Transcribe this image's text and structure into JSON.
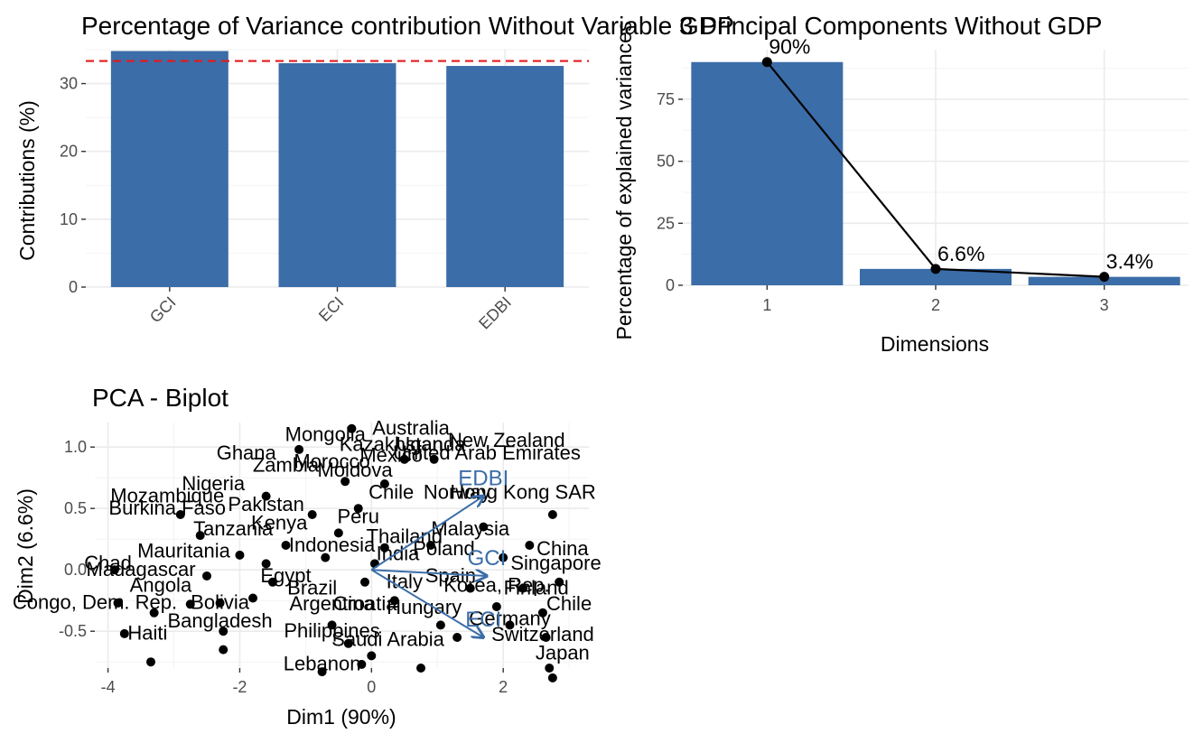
{
  "chart_data": [
    {
      "type": "bar",
      "title": "Percentage of Variance contribution Without Variable GDP",
      "categories": [
        "GCI",
        "ECI",
        "EDBI"
      ],
      "values": [
        34.8,
        33.0,
        32.6
      ],
      "reference_line": 33.33,
      "ylabel": "Contributions (%)",
      "xlabel": "",
      "ylim": [
        0,
        35
      ],
      "yticks": [
        0,
        10,
        20,
        30
      ],
      "bar_color": "#3b6da8",
      "ref_color": "#e41a1c",
      "grid": true
    },
    {
      "type": "bar",
      "title": "3 Principal Components Without GDP",
      "categories": [
        "1",
        "2",
        "3"
      ],
      "values": [
        90.0,
        6.6,
        3.4
      ],
      "data_labels": [
        "90%",
        "6.6%",
        "3.4%"
      ],
      "xlabel": "Dimensions",
      "ylabel": "Percentage of explained variances",
      "ylim": [
        0,
        95
      ],
      "yticks": [
        0,
        25,
        50,
        75
      ],
      "bar_color": "#3b6da8",
      "line_color": "#000000",
      "grid": true
    },
    {
      "type": "scatter",
      "title": "PCA - Biplot",
      "xlabel": "Dim1 (90%)",
      "ylabel": "Dim2 (6.6%)",
      "xlim": [
        -4.2,
        3.3
      ],
      "ylim": [
        -0.8,
        1.2
      ],
      "xticks": [
        -4,
        -2,
        0,
        2
      ],
      "yticks": [
        -0.5,
        0.0,
        0.5,
        1.0
      ],
      "point_color": "#000000",
      "arrow_color": "#3b6da8",
      "loadings": [
        {
          "name": "EDBI",
          "x": 1.7,
          "y": 0.6
        },
        {
          "name": "GCI",
          "x": 1.75,
          "y": -0.05
        },
        {
          "name": "ECI",
          "x": 1.7,
          "y": -0.55
        }
      ],
      "countries": [
        {
          "name": "Mongolia",
          "x": -0.7,
          "y": 1.05
        },
        {
          "name": "Australia",
          "x": 0.6,
          "y": 1.1
        },
        {
          "name": "Kazakhstan",
          "x": 0.3,
          "y": 0.97
        },
        {
          "name": "Uganda",
          "x": 0.9,
          "y": 0.97
        },
        {
          "name": "New Zealand",
          "x": 2.05,
          "y": 1.0
        },
        {
          "name": "United Arab Emirates",
          "x": 1.75,
          "y": 0.9
        },
        {
          "name": "Ghana",
          "x": -1.9,
          "y": 0.9
        },
        {
          "name": "Zambia",
          "x": -1.3,
          "y": 0.8
        },
        {
          "name": "Morocco",
          "x": -0.6,
          "y": 0.83
        },
        {
          "name": "Mexico",
          "x": 0.3,
          "y": 0.88
        },
        {
          "name": "Moldova",
          "x": -0.25,
          "y": 0.76
        },
        {
          "name": "Nigeria",
          "x": -2.4,
          "y": 0.65
        },
        {
          "name": "Chile",
          "x": 0.3,
          "y": 0.58
        },
        {
          "name": "Norway",
          "x": 1.3,
          "y": 0.58
        },
        {
          "name": "Hong Kong SAR",
          "x": 2.3,
          "y": 0.58
        },
        {
          "name": "Mozambique",
          "x": -3.1,
          "y": 0.55
        },
        {
          "name": "Burkina Faso",
          "x": -3.1,
          "y": 0.45
        },
        {
          "name": "Mauritania",
          "x": -2.85,
          "y": 0.1
        },
        {
          "name": "China",
          "x": 2.9,
          "y": 0.12
        },
        {
          "name": "Chad",
          "x": -4.0,
          "y": 0.0
        },
        {
          "name": "Madagascar",
          "x": -3.5,
          "y": -0.05
        },
        {
          "name": "Angola",
          "x": -3.2,
          "y": -0.18
        },
        {
          "name": "Congo, Dem. Rep.",
          "x": -4.2,
          "y": -0.32
        },
        {
          "name": "Bolivia",
          "x": -2.3,
          "y": -0.32
        },
        {
          "name": "Argentina",
          "x": -0.6,
          "y": -0.33
        },
        {
          "name": "Croatia",
          "x": -0.1,
          "y": -0.33
        },
        {
          "name": "Hungary",
          "x": 0.8,
          "y": -0.36
        },
        {
          "name": "Germany",
          "x": 2.1,
          "y": -0.45
        },
        {
          "name": "Chile",
          "x": 3.0,
          "y": -0.33
        },
        {
          "name": "Bangladesh",
          "x": -2.3,
          "y": -0.47
        },
        {
          "name": "Philippines",
          "x": -0.6,
          "y": -0.55
        },
        {
          "name": "Haiti",
          "x": -3.4,
          "y": -0.57
        },
        {
          "name": "Lebanon",
          "x": -0.75,
          "y": -0.82
        },
        {
          "name": "Saudi Arabia",
          "x": 0.25,
          "y": -0.62
        },
        {
          "name": "Switzerland",
          "x": 2.6,
          "y": -0.58
        },
        {
          "name": "Japan",
          "x": 2.9,
          "y": -0.73
        },
        {
          "name": "Pakistan",
          "x": -1.6,
          "y": 0.48
        },
        {
          "name": "Kenya",
          "x": -1.4,
          "y": 0.33
        },
        {
          "name": "Tanzania",
          "x": -2.1,
          "y": 0.28
        },
        {
          "name": "Peru",
          "x": -0.2,
          "y": 0.38
        },
        {
          "name": "Thailand",
          "x": 0.5,
          "y": 0.22
        },
        {
          "name": "Malaysia",
          "x": 1.5,
          "y": 0.28
        },
        {
          "name": "Indonesia",
          "x": -0.6,
          "y": 0.15
        },
        {
          "name": "India",
          "x": 0.4,
          "y": 0.08
        },
        {
          "name": "Poland",
          "x": 1.1,
          "y": 0.12
        },
        {
          "name": "Singapore",
          "x": 2.8,
          "y": 0.0
        },
        {
          "name": "Egypt",
          "x": -1.3,
          "y": -0.1
        },
        {
          "name": "Brazil",
          "x": -0.9,
          "y": -0.2
        },
        {
          "name": "Italy",
          "x": 0.5,
          "y": -0.15
        },
        {
          "name": "Spain",
          "x": 1.2,
          "y": -0.1
        },
        {
          "name": "Korea, Rep.",
          "x": 1.9,
          "y": -0.18
        },
        {
          "name": "Finland",
          "x": 2.5,
          "y": -0.2
        }
      ],
      "points": [
        [
          -3.85,
          -0.27
        ],
        [
          -3.75,
          -0.52
        ],
        [
          -3.35,
          -0.75
        ],
        [
          -3.3,
          -0.35
        ],
        [
          -2.6,
          0.28
        ],
        [
          -2.5,
          -0.05
        ],
        [
          -2.3,
          -0.27
        ],
        [
          -2.25,
          -0.5
        ],
        [
          -2.25,
          -0.65
        ],
        [
          -2.0,
          0.12
        ],
        [
          -1.8,
          -0.23
        ],
        [
          -1.6,
          0.05
        ],
        [
          -1.5,
          -0.1
        ],
        [
          -1.3,
          0.2
        ],
        [
          -1.1,
          0.98
        ],
        [
          -0.9,
          0.45
        ],
        [
          -0.75,
          -0.83
        ],
        [
          -0.7,
          0.1
        ],
        [
          -0.6,
          -0.45
        ],
        [
          -0.5,
          0.3
        ],
        [
          -0.4,
          0.72
        ],
        [
          -0.35,
          -0.6
        ],
        [
          -0.2,
          0.5
        ],
        [
          -0.15,
          -0.77
        ],
        [
          -0.1,
          -0.1
        ],
        [
          0.0,
          -0.7
        ],
        [
          0.05,
          0.05
        ],
        [
          0.2,
          0.7
        ],
        [
          0.35,
          -0.25
        ],
        [
          0.5,
          0.9
        ],
        [
          0.75,
          -0.8
        ],
        [
          0.9,
          0.2
        ],
        [
          1.05,
          -0.45
        ],
        [
          1.3,
          -0.55
        ],
        [
          1.5,
          -0.15
        ],
        [
          1.7,
          0.35
        ],
        [
          1.9,
          -0.3
        ],
        [
          2.0,
          0.1
        ],
        [
          2.1,
          -0.45
        ],
        [
          2.3,
          -0.15
        ],
        [
          2.4,
          0.2
        ],
        [
          2.6,
          -0.35
        ],
        [
          2.65,
          -0.55
        ],
        [
          2.7,
          -0.8
        ],
        [
          2.75,
          -0.88
        ],
        [
          2.85,
          -0.1
        ],
        [
          0.95,
          0.9
        ],
        [
          -1.6,
          0.6
        ],
        [
          -2.9,
          0.45
        ],
        [
          -2.75,
          -0.28
        ],
        [
          -3.9,
          0.0
        ],
        [
          2.75,
          0.45
        ],
        [
          -0.3,
          1.15
        ],
        [
          0.2,
          0.18
        ]
      ]
    }
  ]
}
